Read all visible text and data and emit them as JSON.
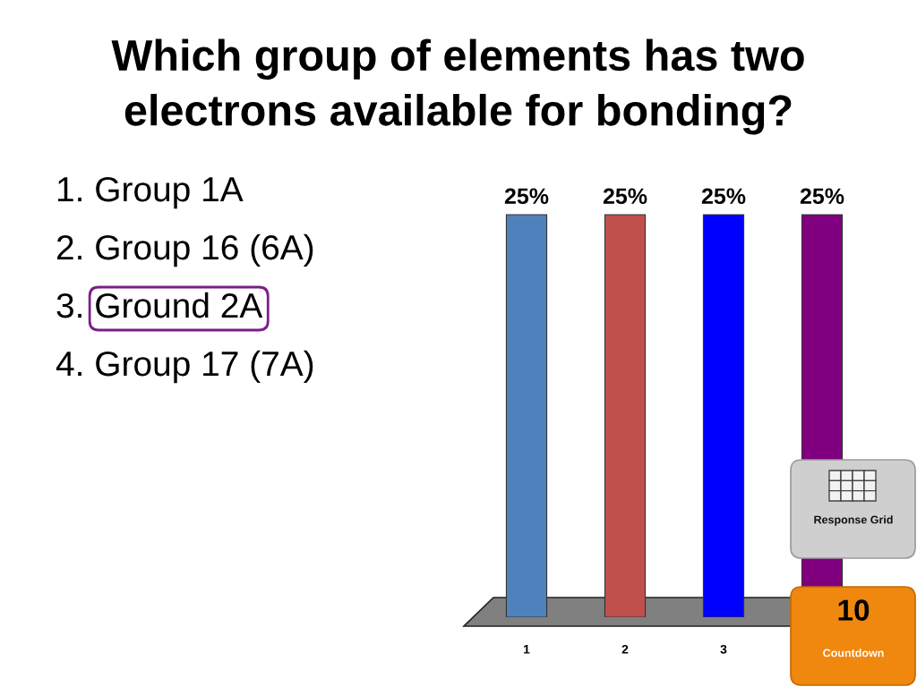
{
  "chart_data": {
    "type": "bar",
    "title": "Which group of elements has two\nelectrons available for bonding?",
    "categories": [
      "1",
      "2",
      "3",
      null
    ],
    "values": [
      25,
      25,
      25,
      25
    ],
    "colors": [
      "#4f81bd",
      "#c0504d",
      "#0000ff",
      "#800080"
    ],
    "value_labels": [
      "25%",
      "25%",
      "25%",
      "25%"
    ],
    "annotations": [
      "1. Group 1A",
      "2. Group 16 (6A)",
      "3. Ground 2A",
      "4. Group 17 (7A)",
      "Response Grid",
      "10",
      "Countdown"
    ]
  }
}
